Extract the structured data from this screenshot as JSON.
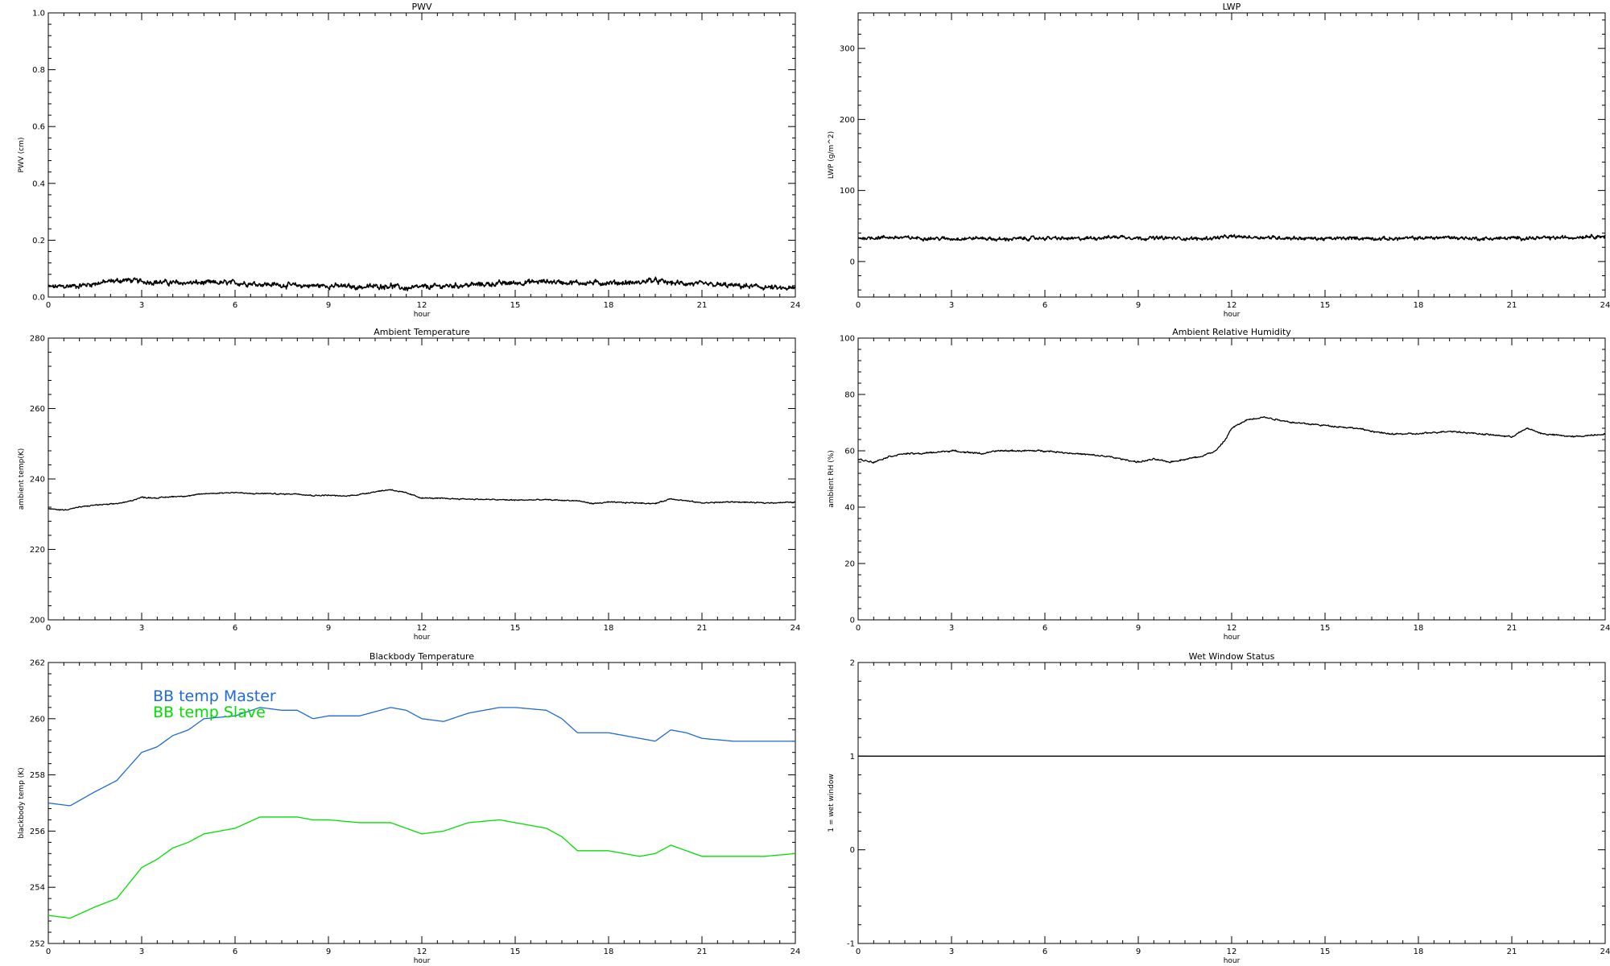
{
  "chart_data": [
    {
      "id": "pwv",
      "type": "line",
      "title": "PWV",
      "xlabel": "hour",
      "ylabel": "PWV (cm)",
      "xlim": [
        0,
        24
      ],
      "ylim": [
        0.0,
        1.0
      ],
      "xticks": [
        0,
        3,
        6,
        9,
        12,
        15,
        18,
        21,
        24
      ],
      "xtick_labels": [
        "0",
        "3",
        "6",
        "9",
        "12",
        "15",
        "18",
        "21",
        "24"
      ],
      "yticks": [
        0.0,
        0.2,
        0.4,
        0.6,
        0.8,
        1.0
      ],
      "ytick_labels": [
        "0.0",
        "0.2",
        "0.4",
        "0.6",
        "0.8",
        "1.0"
      ],
      "noise": 0.008,
      "series": [
        {
          "color": "#000000",
          "x": [
            0,
            1,
            2,
            2.5,
            3,
            4,
            5,
            6,
            7,
            8,
            9,
            10,
            11,
            11.5,
            12,
            13,
            14,
            15,
            16,
            17,
            18,
            19,
            19.3,
            20,
            21,
            22,
            23,
            23.5,
            24
          ],
          "y": [
            0.035,
            0.04,
            0.055,
            0.06,
            0.055,
            0.05,
            0.05,
            0.05,
            0.045,
            0.04,
            0.04,
            0.035,
            0.04,
            0.03,
            0.035,
            0.04,
            0.045,
            0.05,
            0.055,
            0.05,
            0.05,
            0.05,
            0.06,
            0.05,
            0.045,
            0.04,
            0.035,
            0.03,
            0.03
          ]
        }
      ]
    },
    {
      "id": "lwp",
      "type": "line",
      "title": "LWP",
      "xlabel": "hour",
      "ylabel": "LWP (g/m^2)",
      "xlim": [
        0,
        24
      ],
      "ylim": [
        -50,
        350
      ],
      "xticks": [
        0,
        3,
        6,
        9,
        12,
        15,
        18,
        21,
        24
      ],
      "xtick_labels": [
        "0",
        "3",
        "6",
        "9",
        "12",
        "15",
        "18",
        "21",
        "24"
      ],
      "yticks": [
        0,
        100,
        200,
        300
      ],
      "ytick_labels": [
        "0",
        "100",
        "200",
        "300"
      ],
      "noise": 2.2,
      "series": [
        {
          "color": "#000000",
          "x": [
            0,
            1,
            2,
            3,
            4,
            4.5,
            5,
            6,
            7,
            8,
            8.5,
            9,
            10,
            11,
            12,
            13,
            14,
            15,
            16,
            17,
            18,
            19,
            20,
            21,
            22,
            23,
            23.5,
            24
          ],
          "y": [
            33,
            34,
            33,
            32,
            33,
            31,
            32,
            33,
            32,
            34,
            35,
            33,
            33,
            32,
            35,
            34,
            33,
            32,
            33,
            32,
            33,
            34,
            32,
            33,
            33,
            34,
            36,
            35
          ]
        }
      ]
    },
    {
      "id": "ambient-temperature",
      "type": "line",
      "title": "Ambient Temperature",
      "xlabel": "hour",
      "ylabel": "ambient temp(K)",
      "xlim": [
        0,
        24
      ],
      "ylim": [
        200,
        280
      ],
      "xticks": [
        0,
        3,
        6,
        9,
        12,
        15,
        18,
        21,
        24
      ],
      "xtick_labels": [
        "0",
        "3",
        "6",
        "9",
        "12",
        "15",
        "18",
        "21",
        "24"
      ],
      "yticks": [
        200,
        220,
        240,
        260,
        280
      ],
      "ytick_labels": [
        "200",
        "220",
        "240",
        "260",
        "280"
      ],
      "noise": 0.15,
      "series": [
        {
          "color": "#000000",
          "x": [
            0,
            0.5,
            1,
            1.5,
            2,
            2.5,
            3,
            3.5,
            4,
            4.5,
            5,
            5.5,
            6,
            6.5,
            7,
            7.5,
            8,
            8.5,
            9,
            9.5,
            10,
            10.5,
            11,
            11.5,
            12,
            13,
            14,
            15,
            16,
            17,
            17.5,
            18,
            19,
            19.5,
            20,
            21,
            22,
            23,
            24
          ],
          "y": [
            231.5,
            231.2,
            232.0,
            232.6,
            232.8,
            233.4,
            234.8,
            234.6,
            235.0,
            235.2,
            235.8,
            236.0,
            236.2,
            235.8,
            235.9,
            235.7,
            235.8,
            235.3,
            235.4,
            235.1,
            235.6,
            236.4,
            237.0,
            236.0,
            234.6,
            234.4,
            234.2,
            234.0,
            234.1,
            233.8,
            233.0,
            233.4,
            233.2,
            233.0,
            234.4,
            233.2,
            233.5,
            233.2,
            233.4
          ]
        }
      ]
    },
    {
      "id": "ambient-relative-humidity",
      "type": "line",
      "title": "Ambient Relative Humidity",
      "xlabel": "hour",
      "ylabel": "ambient RH (%)",
      "xlim": [
        0,
        24
      ],
      "ylim": [
        0,
        100
      ],
      "xticks": [
        0,
        3,
        6,
        9,
        12,
        15,
        18,
        21,
        24
      ],
      "xtick_labels": [
        "0",
        "3",
        "6",
        "9",
        "12",
        "15",
        "18",
        "21",
        "24"
      ],
      "yticks": [
        0,
        20,
        40,
        60,
        80,
        100
      ],
      "ytick_labels": [
        "0",
        "20",
        "40",
        "60",
        "80",
        "100"
      ],
      "noise": 0.25,
      "series": [
        {
          "color": "#000000",
          "x": [
            0,
            0.5,
            1,
            1.5,
            2,
            3,
            4,
            4.5,
            5,
            6,
            7,
            8,
            9,
            9.5,
            10,
            11,
            11.5,
            11.8,
            12,
            12.5,
            13,
            13.5,
            14,
            15,
            16,
            17,
            18,
            19,
            20,
            21,
            21.5,
            22,
            23,
            24
          ],
          "y": [
            57,
            56,
            58,
            59,
            59,
            60,
            59,
            60,
            60,
            60,
            59,
            58,
            56,
            57,
            56,
            58,
            60,
            64,
            68,
            71,
            72,
            71,
            70,
            69,
            68,
            66,
            66,
            67,
            66,
            65,
            68,
            66,
            65,
            66
          ]
        }
      ]
    },
    {
      "id": "blackbody-temperature",
      "type": "line",
      "title": "Blackbody Temperature",
      "xlabel": "hour",
      "ylabel": "blackbody temp (K)",
      "xlim": [
        0,
        24
      ],
      "ylim": [
        252,
        262
      ],
      "xticks": [
        0,
        3,
        6,
        9,
        12,
        15,
        18,
        21,
        24
      ],
      "xtick_labels": [
        "0",
        "3",
        "6",
        "9",
        "12",
        "15",
        "18",
        "21",
        "24"
      ],
      "yticks": [
        252,
        254,
        256,
        258,
        260,
        262
      ],
      "ytick_labels": [
        "252",
        "254",
        "256",
        "258",
        "260",
        "262"
      ],
      "noise": 0,
      "legend": [
        {
          "label": "BB temp Master",
          "color": "#1f6ad6"
        },
        {
          "label": "BB temp Slave",
          "color": "#00e000"
        }
      ],
      "series": [
        {
          "name": "BB temp Master",
          "color": "#1f6ad6",
          "x": [
            0,
            0.7,
            1.5,
            2.2,
            3,
            3.5,
            4,
            4.5,
            5,
            6,
            6.8,
            7.5,
            8,
            8.5,
            9,
            10,
            11,
            11.5,
            12,
            12.7,
            13.5,
            14.5,
            15,
            16,
            16.5,
            17,
            17.5,
            18,
            18.5,
            19,
            19.5,
            20,
            20.5,
            21,
            22,
            23,
            24
          ],
          "y": [
            257.0,
            256.9,
            257.4,
            257.8,
            258.8,
            259.0,
            259.4,
            259.6,
            260.0,
            260.1,
            260.4,
            260.3,
            260.3,
            260.0,
            260.1,
            260.1,
            260.4,
            260.3,
            260.0,
            259.9,
            260.2,
            260.4,
            260.4,
            260.3,
            260.0,
            259.5,
            259.5,
            259.5,
            259.4,
            259.3,
            259.2,
            259.6,
            259.5,
            259.3,
            259.2,
            259.2,
            259.2
          ]
        },
        {
          "name": "BB temp Slave",
          "color": "#00e000",
          "x": [
            0,
            0.7,
            1.5,
            2.2,
            3,
            3.5,
            4,
            4.5,
            5,
            6,
            6.8,
            7.5,
            8,
            8.5,
            9,
            10,
            11,
            11.5,
            12,
            12.7,
            13.5,
            14.5,
            15,
            16,
            16.5,
            17,
            17.5,
            18,
            18.5,
            19,
            19.5,
            20,
            20.5,
            21,
            22,
            23,
            24
          ],
          "y": [
            253.0,
            252.9,
            253.3,
            253.6,
            254.7,
            255.0,
            255.4,
            255.6,
            255.9,
            256.1,
            256.5,
            256.5,
            256.5,
            256.4,
            256.4,
            256.3,
            256.3,
            256.1,
            255.9,
            256.0,
            256.3,
            256.4,
            256.3,
            256.1,
            255.8,
            255.3,
            255.3,
            255.3,
            255.2,
            255.1,
            255.2,
            255.5,
            255.3,
            255.1,
            255.1,
            255.1,
            255.2
          ]
        }
      ]
    },
    {
      "id": "wet-window-status",
      "type": "line",
      "title": "Wet Window Status",
      "xlabel": "hour",
      "ylabel": "1 = wet window",
      "xlim": [
        0,
        24
      ],
      "ylim": [
        -1,
        2
      ],
      "xticks": [
        0,
        3,
        6,
        9,
        12,
        15,
        18,
        21,
        24
      ],
      "xtick_labels": [
        "0",
        "3",
        "6",
        "9",
        "12",
        "15",
        "18",
        "21",
        "24"
      ],
      "yticks": [
        -1,
        0,
        1,
        2
      ],
      "ytick_labels": [
        "-1",
        "0",
        "1",
        "2"
      ],
      "noise": 0,
      "series": [
        {
          "color": "#000000",
          "x": [
            0,
            24
          ],
          "y": [
            1,
            1
          ]
        }
      ]
    }
  ]
}
